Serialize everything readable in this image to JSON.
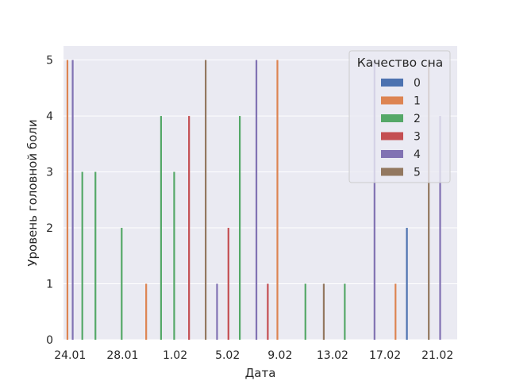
{
  "chart_data": {
    "type": "bar",
    "xlabel": "Дата",
    "ylabel": "Уровень головной боли",
    "ylim": [
      0,
      5.25
    ],
    "yticks": [
      0,
      1,
      2,
      3,
      4,
      5
    ],
    "xticks": [
      "24.01",
      "28.01",
      "1.02",
      "5.02",
      "9.02",
      "13.02",
      "17.02",
      "21.02"
    ],
    "grid": true,
    "legend": {
      "title": "Качество сна",
      "placement": "upper right",
      "entries": [
        "0",
        "1",
        "2",
        "3",
        "4",
        "5"
      ]
    },
    "colors": {
      "0": "#4c72b0",
      "1": "#dd8452",
      "2": "#55a868",
      "3": "#c44e52",
      "4": "#8172b3",
      "5": "#937860"
    },
    "categories": [
      "24.01",
      "25.01",
      "26.01",
      "27.01",
      "28.01",
      "29.01",
      "30.01",
      "31.01",
      "1.02",
      "2.02",
      "3.02",
      "4.02",
      "5.02",
      "6.02",
      "7.02",
      "8.02",
      "9.02",
      "10.02",
      "11.02",
      "12.02",
      "13.02",
      "14.02",
      "15.02",
      "16.02",
      "17.02",
      "18.02",
      "19.02",
      "20.02",
      "21.02",
      "22.02"
    ],
    "hue_levels": [
      "0",
      "1",
      "2",
      "3",
      "4",
      "5"
    ],
    "bars": [
      {
        "date": "24.01",
        "sleep": "4",
        "value": 5
      },
      {
        "date": "24.01",
        "sleep": "1",
        "value": 5
      },
      {
        "date": "25.01",
        "sleep": "2",
        "value": 3
      },
      {
        "date": "26.01",
        "sleep": "2",
        "value": 3
      },
      {
        "date": "27.01",
        "sleep": "2",
        "value": 0
      },
      {
        "date": "28.01",
        "sleep": "2",
        "value": 2
      },
      {
        "date": "29.01",
        "sleep": "4",
        "value": 0
      },
      {
        "date": "30.01",
        "sleep": "1",
        "value": 1
      },
      {
        "date": "31.01",
        "sleep": "2",
        "value": 4
      },
      {
        "date": "1.02",
        "sleep": "2",
        "value": 3
      },
      {
        "date": "2.02",
        "sleep": "3",
        "value": 4
      },
      {
        "date": "3.02",
        "sleep": "5",
        "value": 5
      },
      {
        "date": "4.02",
        "sleep": "4",
        "value": 1
      },
      {
        "date": "5.02",
        "sleep": "3",
        "value": 2
      },
      {
        "date": "6.02",
        "sleep": "2",
        "value": 4
      },
      {
        "date": "7.02",
        "sleep": "4",
        "value": 5
      },
      {
        "date": "8.02",
        "sleep": "3",
        "value": 1
      },
      {
        "date": "9.02",
        "sleep": "1",
        "value": 5
      },
      {
        "date": "10.02",
        "sleep": "2",
        "value": 0
      },
      {
        "date": "11.02",
        "sleep": "2",
        "value": 1
      },
      {
        "date": "12.02",
        "sleep": "5",
        "value": 1
      },
      {
        "date": "13.02",
        "sleep": "2",
        "value": 0
      },
      {
        "date": "14.02",
        "sleep": "2",
        "value": 1
      },
      {
        "date": "15.02",
        "sleep": "4",
        "value": 0
      },
      {
        "date": "16.02",
        "sleep": "4",
        "value": 5
      },
      {
        "date": "17.02",
        "sleep": "1",
        "value": 0
      },
      {
        "date": "18.02",
        "sleep": "1",
        "value": 1
      },
      {
        "date": "19.02",
        "sleep": "0",
        "value": 2
      },
      {
        "date": "20.02",
        "sleep": "5",
        "value": 5
      },
      {
        "date": "21.02",
        "sleep": "4",
        "value": 4
      }
    ]
  }
}
